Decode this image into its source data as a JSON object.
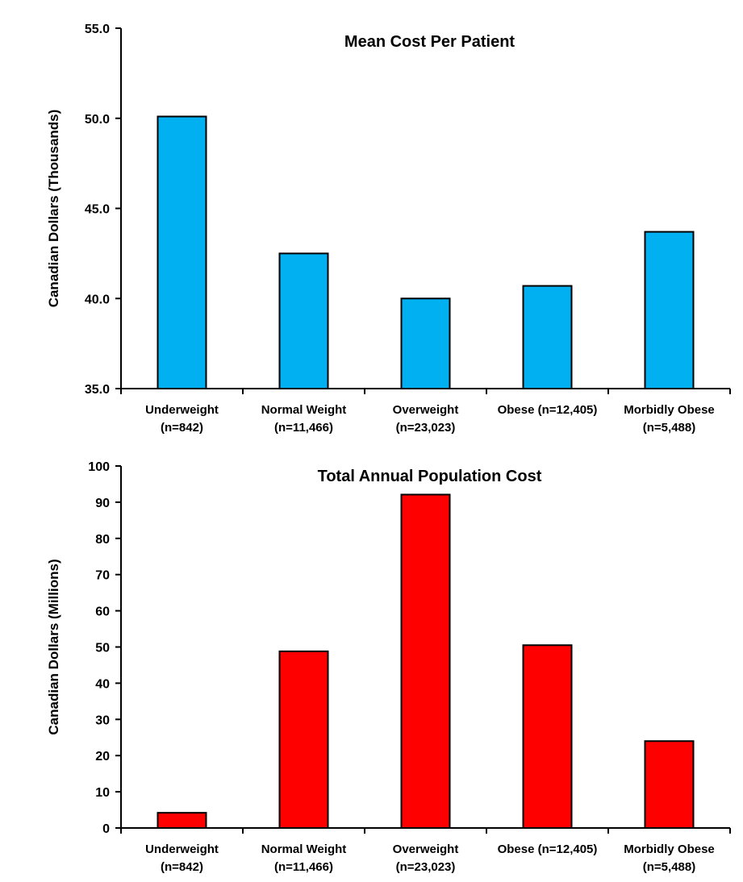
{
  "chart_data": [
    {
      "type": "bar",
      "title": "Mean Cost Per Patient",
      "ylabel": "Canadian Dollars (Thousands)",
      "xlabel": "",
      "ylim": [
        35,
        55
      ],
      "yticks": [
        35,
        40,
        45,
        50,
        55
      ],
      "ytick_labels": [
        "35.0",
        "40.0",
        "45.0",
        "50.0",
        "55.0"
      ],
      "categories": [
        [
          "Underweight",
          "(n=842)"
        ],
        [
          "Normal Weight",
          "(n=11,466)"
        ],
        [
          "Overweight",
          "(n=23,023)"
        ],
        [
          "Obese (n=12,405)"
        ],
        [
          "Morbidly Obese",
          "(n=5,488)"
        ]
      ],
      "values": [
        50.1,
        42.5,
        40.0,
        40.7,
        43.7
      ],
      "color": "#00b0f0",
      "grid": false,
      "legend": "none"
    },
    {
      "type": "bar",
      "title": "Total Annual Population Cost",
      "ylabel": "Canadian Dollars (Millions)",
      "xlabel": "",
      "ylim": [
        0,
        100
      ],
      "yticks": [
        0,
        10,
        20,
        30,
        40,
        50,
        60,
        70,
        80,
        90,
        100
      ],
      "ytick_labels": [
        "0",
        "10",
        "20",
        "30",
        "40",
        "50",
        "60",
        "70",
        "80",
        "90",
        "100"
      ],
      "categories": [
        [
          "Underweight",
          "(n=842)"
        ],
        [
          "Normal Weight",
          "(n=11,466)"
        ],
        [
          "Overweight",
          "(n=23,023)"
        ],
        [
          "Obese (n=12,405)"
        ],
        [
          "Morbidly Obese",
          "(n=5,488)"
        ]
      ],
      "values": [
        4.2,
        48.8,
        92.1,
        50.5,
        24.0
      ],
      "color": "#ff0000",
      "grid": false,
      "legend": "none"
    }
  ]
}
